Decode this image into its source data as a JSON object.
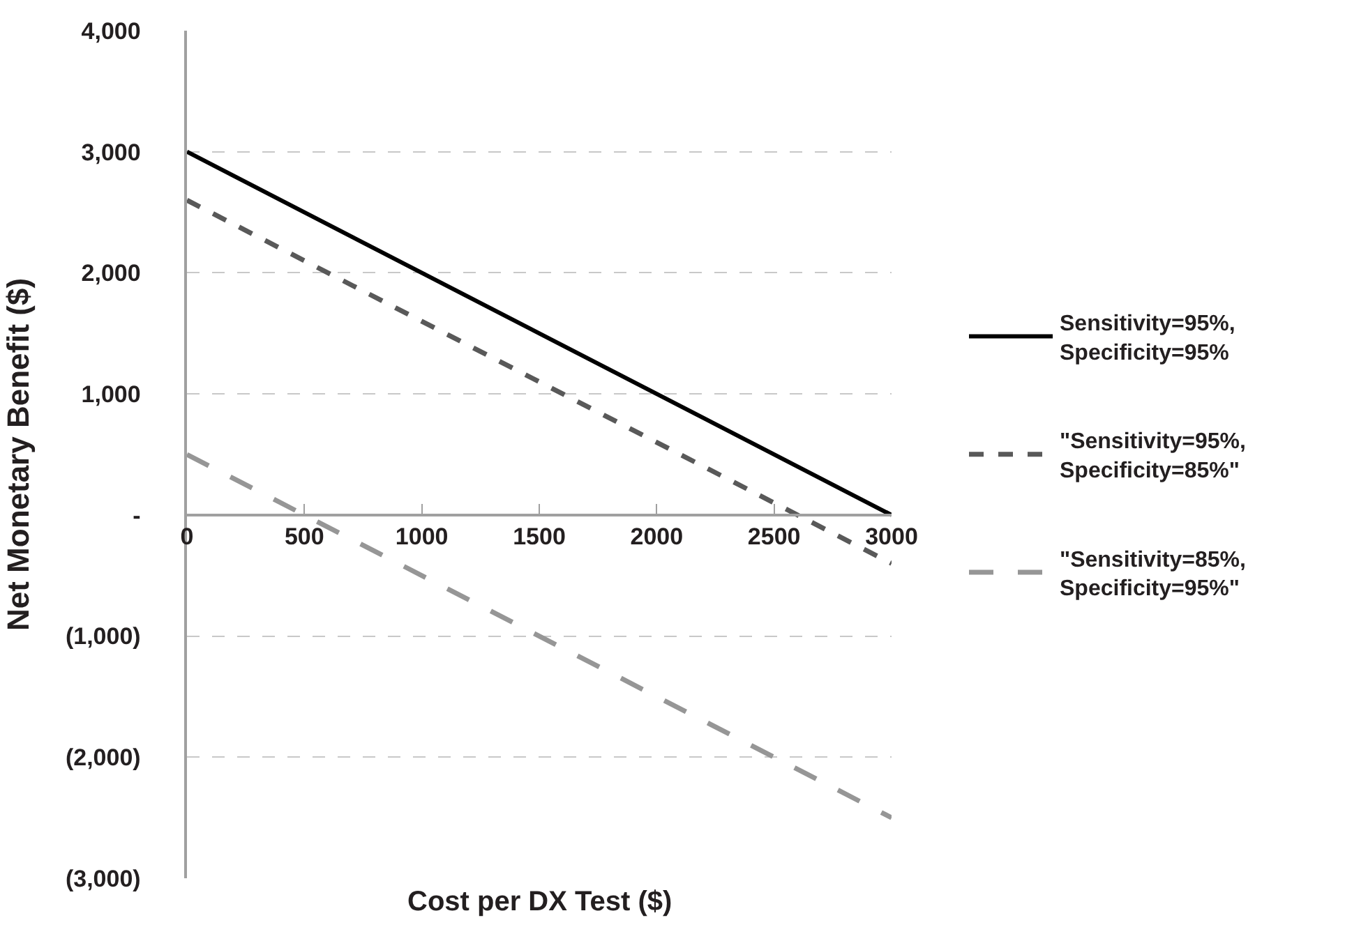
{
  "chart_data": {
    "type": "line",
    "xlabel": "Cost per DX Test ($)",
    "ylabel": "Net Monetary Benefit ($)",
    "x": [
      0,
      3000
    ],
    "series": [
      {
        "name": "Sensitivity=95%,\nSpecificity=95%",
        "color": "#000000",
        "line_style": "solid",
        "values": [
          3000,
          0
        ]
      },
      {
        "name": "\"Sensitivity=95%,\nSpecificity=85%\"",
        "color": "#595959",
        "line_style": "dashed",
        "values": [
          2600,
          -400
        ]
      },
      {
        "name": "\"Sensitivity=85%,\nSpecificity=95%\"",
        "color": "#969696",
        "line_style": "dashed",
        "values": [
          500,
          -2500
        ]
      }
    ],
    "xlim": [
      0,
      3000
    ],
    "xticks": [
      0,
      500,
      1000,
      1500,
      2000,
      2500,
      3000
    ],
    "ylim": [
      -3000,
      4000
    ],
    "yticks": [
      {
        "value": -3000,
        "label": "(3,000)"
      },
      {
        "value": -2000,
        "label": "(2,000)"
      },
      {
        "value": -1000,
        "label": "(1,000)"
      },
      {
        "value": 0,
        "label": "-"
      },
      {
        "value": 1000,
        "label": "1,000"
      },
      {
        "value": 2000,
        "label": "2,000"
      },
      {
        "value": 3000,
        "label": "3,000"
      },
      {
        "value": 4000,
        "label": "4,000"
      }
    ],
    "grid": "y",
    "legend": "right",
    "marker": "none"
  }
}
